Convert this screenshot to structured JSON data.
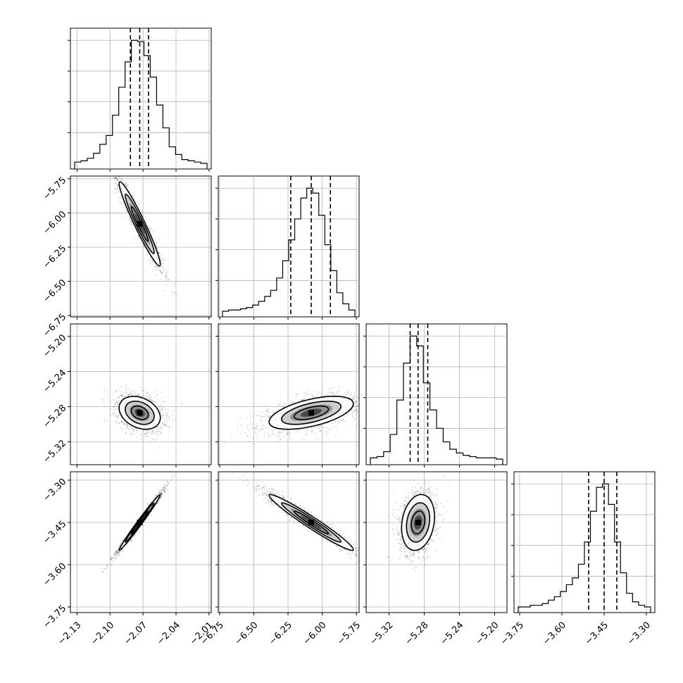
{
  "chart_data": {
    "type": "corner",
    "n_params": 4,
    "parameters": [
      {
        "center": -2.073,
        "sigma": 0.0085,
        "range": [
          -2.136,
          -2.008
        ],
        "quantiles": [
          -2.0815,
          -2.073,
          -2.065
        ],
        "hist": [
          1,
          2,
          4,
          8,
          15,
          22,
          38,
          60,
          80,
          97,
          96,
          85,
          68,
          46,
          28,
          13,
          7,
          3,
          2,
          1,
          0
        ]
      },
      {
        "center": -6.08,
        "sigma": 0.14,
        "range": [
          -6.76,
          -5.73
        ],
        "quantiles": [
          -6.23,
          -6.08,
          -5.94
        ],
        "hist": [
          0,
          1,
          1,
          2,
          3,
          5,
          8,
          12,
          17,
          27,
          41,
          58,
          75,
          92,
          100,
          96,
          78,
          54,
          33,
          15,
          6,
          1
        ]
      },
      {
        "center": -5.287,
        "sigma": 0.0085,
        "range": [
          -5.346,
          -5.186
        ],
        "quantiles": [
          -5.296,
          -5.287,
          -5.276
        ],
        "hist": [
          1,
          2,
          6,
          20,
          48,
          78,
          100,
          92,
          62,
          40,
          25,
          14,
          8,
          5,
          3,
          2,
          1,
          1,
          1,
          0
        ]
      },
      {
        "center": -3.45,
        "sigma": 0.045,
        "range": [
          -3.77,
          -3.27
        ],
        "quantiles": [
          -3.505,
          -3.45,
          -3.405
        ],
        "hist": [
          0,
          0,
          1,
          1,
          2,
          4,
          6,
          9,
          13,
          17,
          25,
          38,
          56,
          70,
          72,
          60,
          38,
          20,
          8,
          3,
          1,
          0
        ]
      }
    ],
    "ticks": [
      [
        "−2.13",
        "−2.10",
        "−2.07",
        "−2.04",
        "−2.01"
      ],
      [
        "−6.75",
        "−6.50",
        "−6.25",
        "−6.00",
        "−5.75"
      ],
      [
        "−5.32",
        "−5.28",
        "−5.24",
        "−5.20"
      ],
      [
        "−3.75",
        "−3.60",
        "−3.45",
        "−3.30"
      ]
    ],
    "tick_values": [
      [
        -2.13,
        -2.1,
        -2.07,
        -2.04,
        -2.01
      ],
      [
        -6.75,
        -6.5,
        -6.25,
        -6.0,
        -5.75
      ],
      [
        -5.32,
        -5.28,
        -5.24,
        -5.2
      ],
      [
        -3.75,
        -3.6,
        -3.45,
        -3.3
      ]
    ],
    "correlations": {
      "1-0": -0.96,
      "2-0": -0.3,
      "2-1": 0.55,
      "3-0": 0.99,
      "3-1": -0.97,
      "3-2": 0.2
    },
    "grid": true,
    "colors": {
      "line": "#000000",
      "grid": "#b0b0b0",
      "scatter": "#000000"
    }
  }
}
